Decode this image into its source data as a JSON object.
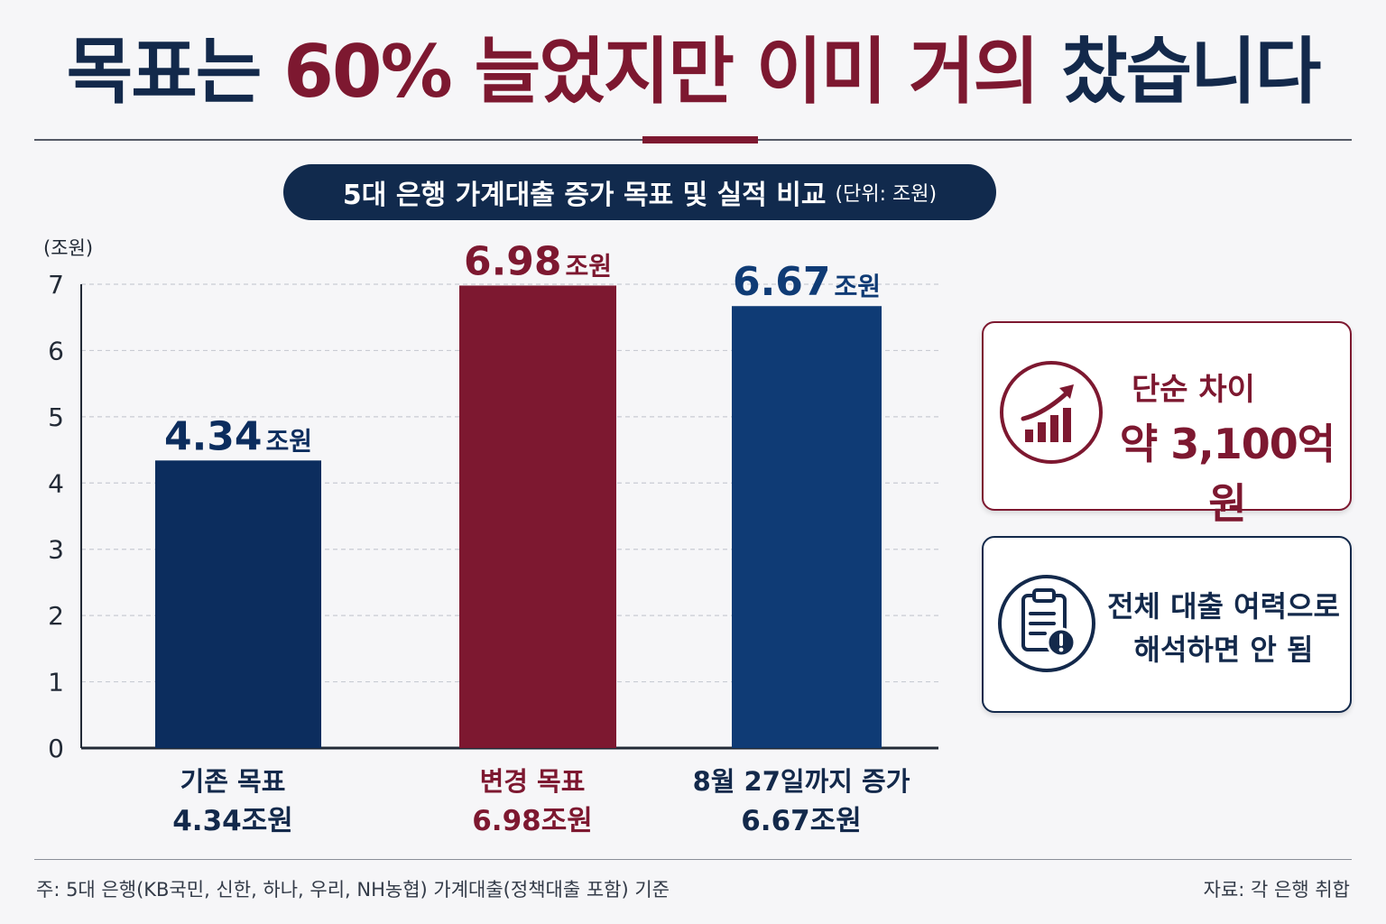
{
  "headline": {
    "part1": "목표는 ",
    "accent": "60% 늘었지만 이미 거의",
    "part2": " 찼습니다"
  },
  "subtitle": {
    "main": "5대 은행 가계대출 증가 목표 및 실적 비교",
    "unit": "(단위: 조원)"
  },
  "chart_data": {
    "type": "bar",
    "ylabel": "(조원)",
    "ylim": [
      0,
      7
    ],
    "yticks": [
      0,
      1,
      2,
      3,
      4,
      5,
      6,
      7
    ],
    "grid": true,
    "bars": [
      {
        "value": 4.34,
        "value_label": "4.34",
        "unit": "조원",
        "color": "#0c2d5e",
        "category_line1": "기존 목표",
        "category_line2": "4.34조원",
        "category_color": "#13294b"
      },
      {
        "value": 6.98,
        "value_label": "6.98",
        "unit": "조원",
        "color": "#7d1830",
        "category_line1": "변경 목표",
        "category_line2": "6.98조원",
        "category_color": "#7d1830"
      },
      {
        "value": 6.67,
        "value_label": "6.67",
        "unit": "조원",
        "color": "#0f3b75",
        "category_line1": "8월 27일까지 증가",
        "category_line2": "6.67조원",
        "category_color": "#13294b"
      }
    ]
  },
  "callouts": {
    "difference": {
      "label": "단순 차이",
      "value": "약 3,100억원",
      "icon": "growth-chart-icon",
      "color": "#7d1830"
    },
    "caution": {
      "line1": "전체 대출 여력으로",
      "line2": "해석하면 안 됨",
      "icon": "clipboard-warning-icon",
      "color": "#13294b"
    }
  },
  "footer": {
    "note": "주: 5대 은행(KB국민, 신한, 하나, 우리, NH농협) 가계대출(정책대출 포함) 기준",
    "source": "자료: 각 은행 취합"
  }
}
